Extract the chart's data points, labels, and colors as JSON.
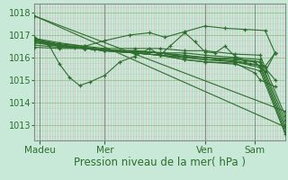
{
  "bg_color": "#c8e8d8",
  "grid_color_v": "#d4b8b8",
  "grid_color_h": "#b0d8c0",
  "line_color": "#2d6e2d",
  "xlabel_text": "Pression niveau de la mer( hPa )",
  "yticks": [
    1013,
    1014,
    1015,
    1016,
    1017,
    1018
  ],
  "ylim": [
    1012.3,
    1018.4
  ],
  "xlim": [
    0.0,
    100.0
  ],
  "xtick_positions": [
    2,
    28,
    68,
    88
  ],
  "xtick_labels": [
    "Madeu",
    "Mer",
    "Ven",
    "Sam"
  ],
  "vline_x": [
    2,
    28,
    68,
    88
  ],
  "lines": [
    [
      0,
      1017.85,
      100,
      1012.9
    ],
    [
      0,
      1017.85,
      100,
      1013.6
    ],
    [
      0,
      1016.9,
      6,
      1016.5,
      10,
      1015.7,
      14,
      1015.1,
      18,
      1014.75,
      22,
      1014.9,
      28,
      1015.2,
      34,
      1015.8,
      40,
      1016.05,
      46,
      1016.4,
      50,
      1016.1,
      54,
      1016.5,
      60,
      1017.1,
      64,
      1016.7,
      68,
      1016.25,
      72,
      1016.2,
      76,
      1016.5,
      80,
      1016.05,
      84,
      1015.85,
      88,
      1015.8,
      92,
      1015.35,
      96,
      1016.2
    ],
    [
      0,
      1016.85,
      6,
      1016.65,
      10,
      1016.55,
      16,
      1016.45,
      20,
      1016.4,
      24,
      1016.35,
      28,
      1016.35,
      34,
      1016.3,
      40,
      1016.3,
      46,
      1016.25,
      52,
      1016.2,
      56,
      1016.1,
      60,
      1016.05,
      68,
      1016.0,
      74,
      1015.9,
      80,
      1015.8,
      86,
      1015.7,
      92,
      1015.6,
      96,
      1016.2
    ],
    [
      0,
      1016.85,
      10,
      1016.65,
      20,
      1016.5,
      28,
      1016.75,
      38,
      1017.0,
      46,
      1017.1,
      52,
      1016.9,
      60,
      1017.15,
      68,
      1017.4,
      76,
      1017.3,
      84,
      1017.25,
      92,
      1017.2,
      96,
      1016.2
    ],
    [
      0,
      1016.8,
      10,
      1016.6,
      20,
      1016.5,
      28,
      1016.4,
      40,
      1016.4,
      50,
      1016.4,
      60,
      1016.3,
      68,
      1016.3,
      80,
      1016.15,
      90,
      1016.1,
      100,
      1013.4
    ],
    [
      0,
      1016.75,
      10,
      1016.55,
      20,
      1016.45,
      28,
      1016.35,
      40,
      1016.25,
      50,
      1016.2,
      60,
      1016.2,
      68,
      1016.1,
      80,
      1016.0,
      90,
      1015.9,
      100,
      1013.2
    ],
    [
      0,
      1016.75,
      10,
      1016.55,
      20,
      1016.45,
      28,
      1016.35,
      40,
      1016.25,
      50,
      1016.2,
      60,
      1016.1,
      68,
      1016.0,
      80,
      1015.95,
      90,
      1015.8,
      100,
      1013.0
    ],
    [
      0,
      1016.7,
      10,
      1016.5,
      20,
      1016.4,
      28,
      1016.3,
      40,
      1016.2,
      50,
      1016.1,
      60,
      1016.0,
      68,
      1015.9,
      80,
      1015.85,
      90,
      1015.65,
      100,
      1012.85
    ],
    [
      0,
      1016.7,
      10,
      1016.5,
      20,
      1016.4,
      28,
      1016.3,
      40,
      1016.2,
      50,
      1016.1,
      60,
      1016.0,
      68,
      1015.9,
      80,
      1015.8,
      90,
      1015.55,
      100,
      1012.7
    ],
    [
      0,
      1016.65,
      10,
      1016.5,
      20,
      1016.4,
      28,
      1016.3,
      40,
      1016.2,
      50,
      1016.1,
      60,
      1015.9,
      68,
      1015.8,
      80,
      1015.7,
      90,
      1015.4,
      100,
      1012.6
    ],
    [
      0,
      1016.55,
      10,
      1016.45,
      20,
      1016.4,
      28,
      1016.3,
      40,
      1016.2,
      50,
      1016.1,
      60,
      1015.9,
      68,
      1015.8,
      80,
      1015.75,
      88,
      1015.3,
      90,
      1015.0,
      96,
      1014.7
    ],
    [
      0,
      1016.45,
      10,
      1016.4,
      20,
      1016.4,
      28,
      1016.3,
      40,
      1016.3,
      50,
      1016.2,
      60,
      1016.0,
      68,
      1016.0,
      80,
      1015.9,
      90,
      1015.8,
      96,
      1015.0
    ]
  ],
  "xlabel_fontsize": 8.5,
  "ytick_fontsize": 7,
  "xtick_fontsize": 7.5
}
